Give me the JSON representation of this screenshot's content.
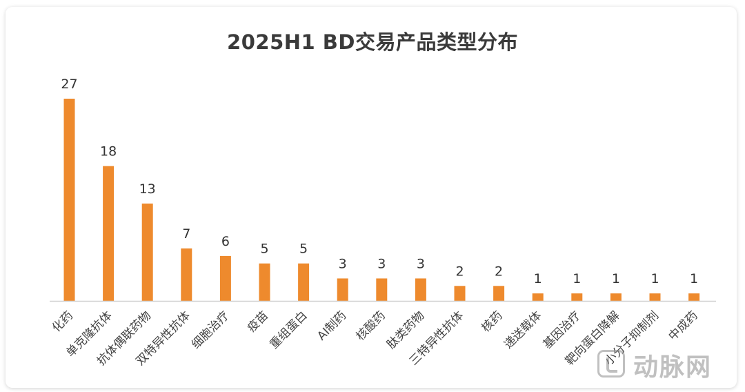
{
  "chart_data": {
    "type": "bar",
    "title": "2025H1 BD交易产品类型分布",
    "categories": [
      "化药",
      "单克隆抗体",
      "抗体偶联药物",
      "双特异性抗体",
      "细胞治疗",
      "疫苗",
      "重组蛋白",
      "AI制药",
      "核酸药",
      "肽类药物",
      "三特异性抗体",
      "核药",
      "递送载体",
      "基因治疗",
      "靶向蛋白降解",
      "小分子抑制剂",
      "中成药"
    ],
    "values": [
      27,
      18,
      13,
      7,
      6,
      5,
      5,
      3,
      3,
      3,
      2,
      2,
      1,
      1,
      1,
      1,
      1
    ],
    "data_labels": [
      "27",
      "18",
      "13",
      "7",
      "6",
      "5",
      "5",
      "3",
      "3",
      "3",
      "2",
      "2",
      "1",
      "1",
      "1",
      "1",
      "1"
    ],
    "bar_color": "#ee8a2d",
    "xlabel": "",
    "ylabel": "",
    "ylim": [
      0,
      27
    ],
    "grid": false,
    "legend": "none"
  },
  "watermark": {
    "text": "动脉网",
    "icon": "arterial-network-logo-icon"
  }
}
